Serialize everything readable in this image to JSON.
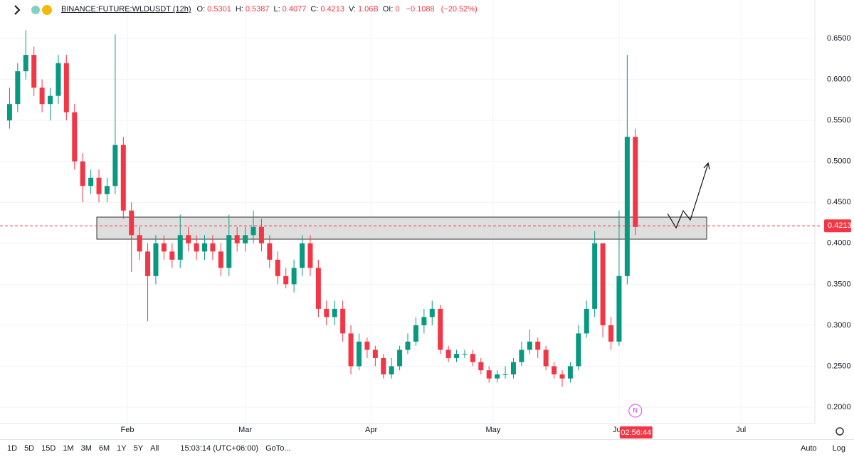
{
  "header": {
    "symbol": "BINANCE:FUTURE:WLDUSDT (12h)",
    "fields": [
      {
        "label": "O:",
        "value": "0.5301"
      },
      {
        "label": "H:",
        "value": "0.5387"
      },
      {
        "label": "L:",
        "value": "0.4077"
      },
      {
        "label": "C:",
        "value": "0.4213"
      },
      {
        "label": "V:",
        "value": "1.06B"
      },
      {
        "label": "OI:",
        "value": "0"
      }
    ],
    "change": "−0.1088",
    "change_pct": "(−20.52%)"
  },
  "chart_data": {
    "type": "candlestick",
    "x": [
      2,
      4,
      6,
      8,
      10,
      12,
      14,
      16,
      18,
      20,
      22,
      24,
      26,
      28,
      30,
      32,
      34,
      36,
      38,
      40,
      42,
      44,
      46,
      48,
      50,
      52,
      54,
      56,
      58,
      60,
      62,
      64,
      66,
      68,
      70,
      72,
      74,
      76,
      78,
      80,
      82,
      84,
      86,
      88,
      90,
      92,
      94,
      96,
      98,
      100,
      102,
      104,
      106,
      108,
      110,
      112,
      114,
      116,
      118,
      120,
      122,
      124,
      126,
      128,
      130,
      132,
      134,
      136,
      138,
      140,
      142,
      144,
      146,
      148,
      150,
      152,
      154,
      156
    ],
    "open": [
      0.55,
      0.57,
      0.61,
      0.63,
      0.59,
      0.57,
      0.58,
      0.62,
      0.56,
      0.5,
      0.47,
      0.48,
      0.46,
      0.47,
      0.52,
      0.44,
      0.41,
      0.39,
      0.36,
      0.4,
      0.39,
      0.38,
      0.41,
      0.4,
      0.39,
      0.4,
      0.39,
      0.37,
      0.41,
      0.4,
      0.41,
      0.42,
      0.4,
      0.38,
      0.36,
      0.35,
      0.37,
      0.4,
      0.37,
      0.32,
      0.31,
      0.32,
      0.29,
      0.25,
      0.28,
      0.27,
      0.26,
      0.24,
      0.25,
      0.27,
      0.28,
      0.3,
      0.31,
      0.32,
      0.27,
      0.26,
      0.265,
      0.265,
      0.255,
      0.245,
      0.235,
      0.24,
      0.24,
      0.255,
      0.27,
      0.28,
      0.27,
      0.25,
      0.24,
      0.235,
      0.25,
      0.29,
      0.32,
      0.4,
      0.3,
      0.28,
      0.36,
      0.53
    ],
    "high": [
      0.59,
      0.62,
      0.66,
      0.64,
      0.6,
      0.59,
      0.63,
      0.63,
      0.57,
      0.51,
      0.49,
      0.49,
      0.48,
      0.655,
      0.53,
      0.45,
      0.42,
      0.4,
      0.41,
      0.41,
      0.4,
      0.435,
      0.42,
      0.41,
      0.41,
      0.41,
      0.4,
      0.435,
      0.42,
      0.42,
      0.44,
      0.43,
      0.41,
      0.39,
      0.37,
      0.38,
      0.41,
      0.41,
      0.38,
      0.33,
      0.33,
      0.33,
      0.3,
      0.29,
      0.285,
      0.275,
      0.265,
      0.26,
      0.275,
      0.29,
      0.31,
      0.32,
      0.33,
      0.325,
      0.275,
      0.27,
      0.27,
      0.27,
      0.26,
      0.25,
      0.245,
      0.25,
      0.26,
      0.28,
      0.295,
      0.285,
      0.275,
      0.255,
      0.245,
      0.255,
      0.3,
      0.33,
      0.415,
      0.4,
      0.31,
      0.44,
      0.63,
      0.54
    ],
    "low": [
      0.54,
      0.56,
      0.6,
      0.58,
      0.56,
      0.55,
      0.57,
      0.55,
      0.49,
      0.45,
      0.46,
      0.45,
      0.45,
      0.46,
      0.43,
      0.365,
      0.38,
      0.305,
      0.35,
      0.38,
      0.37,
      0.37,
      0.39,
      0.38,
      0.38,
      0.38,
      0.36,
      0.36,
      0.39,
      0.39,
      0.4,
      0.39,
      0.37,
      0.35,
      0.345,
      0.34,
      0.36,
      0.36,
      0.31,
      0.3,
      0.3,
      0.28,
      0.24,
      0.245,
      0.26,
      0.25,
      0.235,
      0.235,
      0.245,
      0.265,
      0.275,
      0.29,
      0.3,
      0.265,
      0.255,
      0.255,
      0.26,
      0.25,
      0.24,
      0.23,
      0.23,
      0.235,
      0.235,
      0.25,
      0.265,
      0.26,
      0.245,
      0.235,
      0.225,
      0.23,
      0.245,
      0.285,
      0.31,
      0.285,
      0.27,
      0.275,
      0.35,
      0.41
    ],
    "close": [
      0.57,
      0.61,
      0.63,
      0.59,
      0.57,
      0.58,
      0.62,
      0.56,
      0.5,
      0.47,
      0.48,
      0.46,
      0.47,
      0.52,
      0.44,
      0.41,
      0.39,
      0.36,
      0.4,
      0.39,
      0.38,
      0.41,
      0.4,
      0.39,
      0.4,
      0.39,
      0.37,
      0.41,
      0.4,
      0.41,
      0.42,
      0.4,
      0.38,
      0.36,
      0.35,
      0.37,
      0.4,
      0.37,
      0.32,
      0.31,
      0.32,
      0.29,
      0.25,
      0.28,
      0.27,
      0.26,
      0.24,
      0.25,
      0.27,
      0.28,
      0.3,
      0.31,
      0.32,
      0.27,
      0.26,
      0.265,
      0.265,
      0.255,
      0.245,
      0.235,
      0.24,
      0.24,
      0.255,
      0.27,
      0.28,
      0.27,
      0.25,
      0.24,
      0.235,
      0.25,
      0.29,
      0.32,
      0.4,
      0.3,
      0.28,
      0.36,
      0.53,
      0.42
    ],
    "up_color": "#089981",
    "down_color": "#f23645",
    "xlim": [
      0,
      200
    ],
    "xticks": [
      {
        "value": 31,
        "label": "Feb"
      },
      {
        "value": 60,
        "label": "Mar"
      },
      {
        "value": 91,
        "label": "Apr"
      },
      {
        "value": 121,
        "label": "May"
      },
      {
        "value": 152,
        "label": "Jun"
      },
      {
        "value": 182,
        "label": "Jul"
      }
    ],
    "ylim": [
      0.18,
      0.697
    ],
    "yticks": [
      {
        "value": 0.2,
        "label": "0.2000"
      },
      {
        "value": 0.25,
        "label": "0.2500"
      },
      {
        "value": 0.3,
        "label": "0.3000"
      },
      {
        "value": 0.35,
        "label": "0.3500"
      },
      {
        "value": 0.4,
        "label": "0.4000"
      },
      {
        "value": 0.45,
        "label": "0.4500"
      },
      {
        "value": 0.5,
        "label": "0.5000"
      },
      {
        "value": 0.55,
        "label": "0.5500"
      },
      {
        "value": 0.6,
        "label": "0.6000"
      },
      {
        "value": 0.65,
        "label": "0.6500"
      }
    ],
    "grid": true,
    "last_price": 0.4213,
    "countdown": "02:56:44",
    "event_marker": "N"
  },
  "toolbar": {
    "ranges": [
      "1D",
      "5D",
      "15D",
      "1M",
      "3M",
      "6M",
      "1Y",
      "5Y",
      "All"
    ],
    "clock": "15:03:14 (UTC+06:00)",
    "goto": "GoTo...",
    "modes": [
      "Auto",
      "Log"
    ]
  }
}
